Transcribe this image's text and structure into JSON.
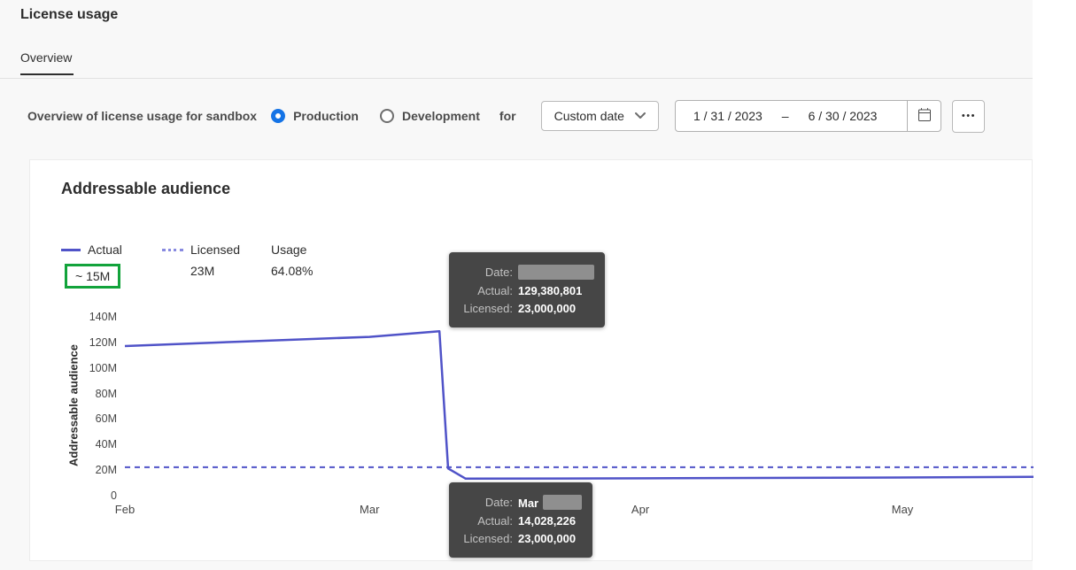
{
  "colors": {
    "accent_blue": "#1473e6",
    "chart_line": "#5053c8",
    "highlight_green": "#12a33b",
    "tooltip_bg": "#464646"
  },
  "header": {
    "title": "License usage",
    "tabs": [
      {
        "label": "Overview",
        "active": true
      }
    ]
  },
  "filters": {
    "label": "Overview of license usage for sandbox",
    "radio_production": "Production",
    "radio_development": "Development",
    "for_label": "for",
    "preset": "Custom date",
    "date_start": "1 / 31 / 2023",
    "date_separator": "–",
    "date_end": "6 / 30 / 2023",
    "more_label": "•••"
  },
  "card": {
    "title": "Addressable audience",
    "legend": {
      "actual_label": "Actual",
      "actual_value": "~ 15M",
      "licensed_label": "Licensed",
      "licensed_value": "23M",
      "usage_label": "Usage",
      "usage_value": "64.08%"
    },
    "tooltips": {
      "top": {
        "date_label": "Date:",
        "date_value": "",
        "actual_label": "Actual:",
        "actual_value": "129,380,801",
        "licensed_label": "Licensed:",
        "licensed_value": "23,000,000"
      },
      "bottom": {
        "date_label": "Date:",
        "date_value": "Mar",
        "actual_label": "Actual:",
        "actual_value": "14,028,226",
        "licensed_label": "Licensed:",
        "licensed_value": "23,000,000"
      }
    }
  },
  "chart_data": {
    "type": "line",
    "title": "Addressable audience",
    "xlabel": "",
    "ylabel": "Addressable audience",
    "ylim": [
      0,
      140000000
    ],
    "grid": false,
    "legend_position": "top-left",
    "days_span": 104,
    "y_ticks": [
      {
        "label": "140M",
        "value": 140000000
      },
      {
        "label": "120M",
        "value": 120000000
      },
      {
        "label": "100M",
        "value": 100000000
      },
      {
        "label": "80M",
        "value": 80000000
      },
      {
        "label": "60M",
        "value": 60000000
      },
      {
        "label": "40M",
        "value": 40000000
      },
      {
        "label": "20M",
        "value": 20000000
      },
      {
        "label": "0",
        "value": 0
      }
    ],
    "x_ticks": [
      {
        "label": "Feb",
        "day": 0
      },
      {
        "label": "Mar",
        "day": 28
      },
      {
        "label": "Apr",
        "day": 59
      },
      {
        "label": "May",
        "day": 89
      }
    ],
    "series": [
      {
        "name": "Actual",
        "style": "solid",
        "color": "#5053c8",
        "points": [
          [
            0,
            117800000
          ],
          [
            14,
            121500000
          ],
          [
            28,
            125000000
          ],
          [
            36,
            129380801
          ],
          [
            37,
            22000000
          ],
          [
            39,
            14028226
          ],
          [
            60,
            14300000
          ],
          [
            85,
            14800000
          ],
          [
            104,
            15400000
          ]
        ]
      },
      {
        "name": "Licensed",
        "style": "dashed",
        "color": "#5053c8",
        "value": 23000000
      }
    ],
    "summary": {
      "actual_current": "~ 15M",
      "licensed_total": "23M",
      "usage_percent": "64.08%"
    }
  }
}
